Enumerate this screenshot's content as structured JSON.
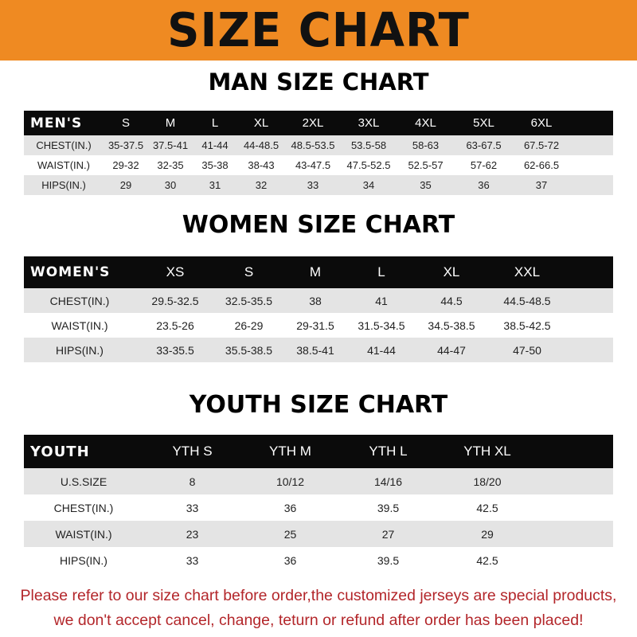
{
  "banner": {
    "title": "SIZE CHART",
    "background": "#ef8a22"
  },
  "men": {
    "title": "MAN SIZE CHART",
    "header": [
      "MEN'S",
      "S",
      "M",
      "L",
      "XL",
      "2XL",
      "3XL",
      "4XL",
      "5XL",
      "6XL"
    ],
    "rows": [
      [
        "CHEST(IN.)",
        "35-37.5",
        "37.5-41",
        "41-44",
        "44-48.5",
        "48.5-53.5",
        "53.5-58",
        "58-63",
        "63-67.5",
        "67.5-72"
      ],
      [
        "WAIST(IN.)",
        "29-32",
        "32-35",
        "35-38",
        "38-43",
        "43-47.5",
        "47.5-52.5",
        "52.5-57",
        "57-62",
        "62-66.5"
      ],
      [
        "HIPS(IN.)",
        "29",
        "30",
        "31",
        "32",
        "33",
        "34",
        "35",
        "36",
        "37"
      ]
    ]
  },
  "women": {
    "title": "WOMEN SIZE CHART",
    "header": [
      "WOMEN'S",
      "XS",
      "S",
      "M",
      "L",
      "XL",
      "XXL"
    ],
    "rows": [
      [
        "CHEST(IN.)",
        "29.5-32.5",
        "32.5-35.5",
        "38",
        "41",
        "44.5",
        "44.5-48.5"
      ],
      [
        "WAIST(IN.)",
        "23.5-26",
        "26-29",
        "29-31.5",
        "31.5-34.5",
        "34.5-38.5",
        "38.5-42.5"
      ],
      [
        "HIPS(IN.)",
        "33-35.5",
        "35.5-38.5",
        "38.5-41",
        "41-44",
        "44-47",
        "47-50"
      ]
    ]
  },
  "youth": {
    "title": "YOUTH SIZE CHART",
    "header": [
      "YOUTH",
      "YTH S",
      "YTH M",
      "YTH L",
      "YTH XL"
    ],
    "rows": [
      [
        "U.S.SIZE",
        "8",
        "10/12",
        "14/16",
        "18/20"
      ],
      [
        "CHEST(IN.)",
        "33",
        "36",
        "39.5",
        "42.5"
      ],
      [
        "WAIST(IN.)",
        "23",
        "25",
        "27",
        "29"
      ],
      [
        "HIPS(IN.)",
        "33",
        "36",
        "39.5",
        "42.5"
      ]
    ]
  },
  "notice": {
    "line1": "Please refer to our size chart before order,the customized jerseys are special products,",
    "line2": "we don't accept cancel, change, teturn or refund after order has been placed!",
    "color": "#b3262a"
  }
}
